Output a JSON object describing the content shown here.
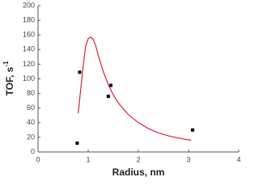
{
  "chart_data": {
    "type": "scatter",
    "x_label": "Radius, nm",
    "y_label": "TOF, s",
    "y_label_sup": "-1",
    "xlim": [
      0,
      4
    ],
    "xticks": [
      0,
      1,
      2,
      3,
      4
    ],
    "ylim": [
      0,
      200
    ],
    "yticks": [
      0,
      20,
      40,
      60,
      80,
      100,
      120,
      140,
      160,
      180,
      200
    ],
    "series": [
      {
        "type": "scatter",
        "color": "#000000",
        "x": [
          0.78,
          0.83,
          1.4,
          1.45,
          3.08
        ],
        "values": [
          12,
          109,
          76,
          91,
          30
        ]
      },
      {
        "type": "line",
        "color": "#d8203a",
        "x": [
          0.8,
          0.85,
          0.9,
          0.95,
          1.0,
          1.05,
          1.1,
          1.15,
          1.2,
          1.3,
          1.4,
          1.5,
          1.6,
          1.8,
          2.0,
          2.2,
          2.4,
          2.6,
          2.8,
          3.05
        ],
        "values": [
          53,
          85,
          118,
          145,
          155,
          157,
          154,
          145,
          132,
          110,
          92,
          78,
          67,
          51,
          40,
          32,
          26,
          22,
          19,
          16
        ]
      }
    ]
  }
}
